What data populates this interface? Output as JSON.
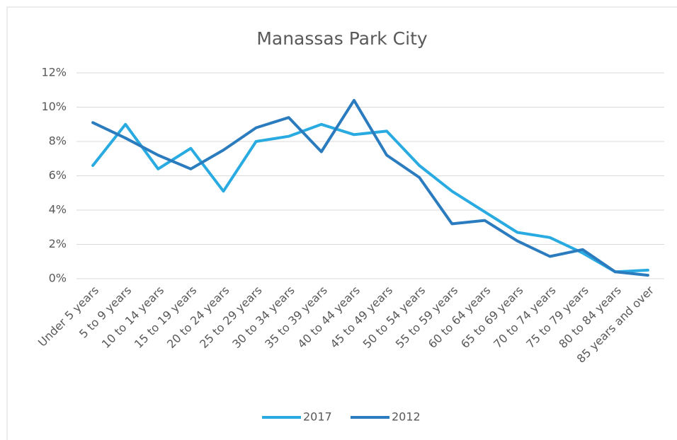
{
  "chart_data": {
    "type": "line",
    "title": "Manassas Park City",
    "categories": [
      "Under 5 years",
      "5 to 9 years",
      "10 to 14 years",
      "15 to 19 years",
      "20 to 24 years",
      "25 to 29 years",
      "30 to 34 years",
      "35 to 39 years",
      "40 to 44 years",
      "45 to 49 years",
      "50 to 54 years",
      "55 to 59 years",
      "60 to 64 years",
      "65 to 69 years",
      "70 to 74 years",
      "75 to 79 years",
      "80 to 84 years",
      "85 years and over"
    ],
    "series": [
      {
        "name": "2017",
        "color": "#29abe2",
        "values": [
          6.6,
          9.0,
          6.4,
          7.6,
          5.1,
          8.0,
          8.3,
          9.0,
          8.4,
          8.6,
          6.6,
          5.1,
          3.9,
          2.7,
          2.4,
          1.5,
          0.4,
          0.5
        ]
      },
      {
        "name": "2012",
        "color": "#2b7bbf",
        "values": [
          9.1,
          8.2,
          7.2,
          6.4,
          7.5,
          8.8,
          9.4,
          7.4,
          10.4,
          7.2,
          5.9,
          3.2,
          3.4,
          2.2,
          1.3,
          1.7,
          0.4,
          0.2
        ]
      }
    ],
    "ylim": [
      0,
      12
    ],
    "yticks": [
      {
        "value": 0,
        "label": "0%"
      },
      {
        "value": 2,
        "label": "2%"
      },
      {
        "value": 4,
        "label": "4%"
      },
      {
        "value": 6,
        "label": "6%"
      },
      {
        "value": 8,
        "label": "8%"
      },
      {
        "value": 10,
        "label": "10%"
      },
      {
        "value": 12,
        "label": "12%"
      }
    ],
    "grid": true,
    "legend": "bottom"
  }
}
